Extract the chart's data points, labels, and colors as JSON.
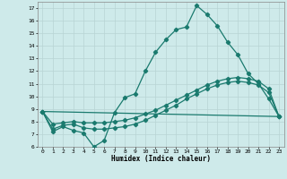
{
  "xlabel": "Humidex (Indice chaleur)",
  "bg_color": "#ceeaea",
  "grid_color": "#b8d4d4",
  "line_color": "#1a7a6e",
  "xlim": [
    -0.5,
    23.5
  ],
  "ylim": [
    6,
    17.5
  ],
  "yticks": [
    6,
    7,
    8,
    9,
    10,
    11,
    12,
    13,
    14,
    15,
    16,
    17
  ],
  "xticks": [
    0,
    1,
    2,
    3,
    4,
    5,
    6,
    7,
    8,
    9,
    10,
    11,
    12,
    13,
    14,
    15,
    16,
    17,
    18,
    19,
    20,
    21,
    22,
    23
  ],
  "curve1_x": [
    0,
    1,
    2,
    3,
    4,
    5,
    6,
    7,
    8,
    9,
    10,
    11,
    12,
    13,
    14,
    15,
    16,
    17,
    18,
    19,
    20,
    21,
    22,
    23
  ],
  "curve1_y": [
    8.8,
    7.2,
    7.6,
    7.3,
    7.1,
    6.0,
    6.5,
    8.7,
    9.9,
    10.2,
    12.0,
    13.5,
    14.5,
    15.3,
    15.5,
    17.2,
    16.5,
    15.6,
    14.3,
    13.3,
    11.8,
    11.0,
    9.8,
    8.4
  ],
  "curve2_x": [
    0,
    1,
    2,
    3,
    4,
    5,
    6,
    7,
    8,
    9,
    10,
    11,
    12,
    13,
    14,
    15,
    16,
    17,
    18,
    19,
    20,
    21,
    22,
    23
  ],
  "curve2_y": [
    8.8,
    7.4,
    7.7,
    7.8,
    7.5,
    7.4,
    7.4,
    7.5,
    7.6,
    7.8,
    8.1,
    8.5,
    8.9,
    9.3,
    9.8,
    10.2,
    10.6,
    10.9,
    11.1,
    11.2,
    11.1,
    10.9,
    10.3,
    8.4
  ],
  "curve3_x": [
    0,
    1,
    2,
    3,
    4,
    5,
    6,
    7,
    8,
    9,
    10,
    11,
    12,
    13,
    14,
    15,
    16,
    17,
    18,
    19,
    20,
    21,
    22,
    23
  ],
  "curve3_y": [
    8.8,
    7.8,
    7.9,
    8.0,
    7.9,
    7.9,
    7.9,
    8.0,
    8.1,
    8.3,
    8.6,
    8.9,
    9.3,
    9.7,
    10.1,
    10.5,
    10.9,
    11.2,
    11.4,
    11.5,
    11.4,
    11.2,
    10.6,
    8.4
  ],
  "curve4_x": [
    0,
    23
  ],
  "curve4_y": [
    8.8,
    8.4
  ],
  "markersize": 2.2,
  "linewidth": 0.9
}
